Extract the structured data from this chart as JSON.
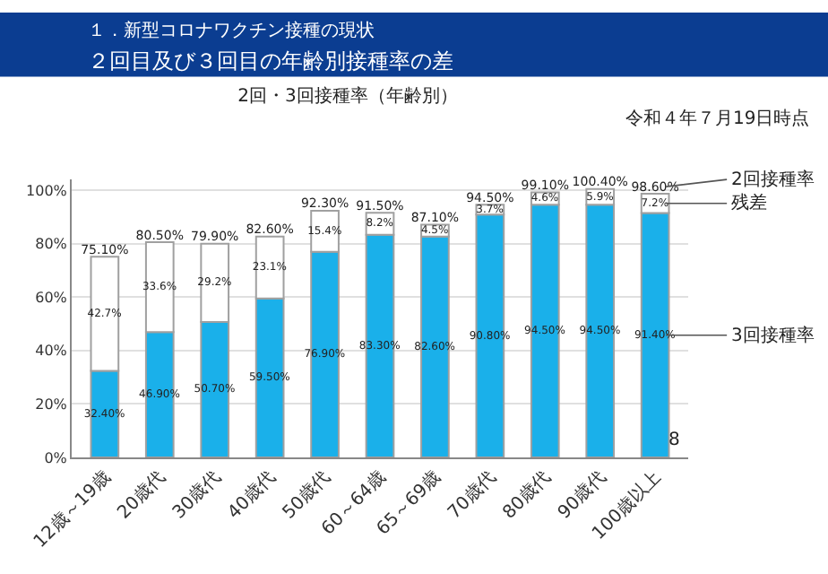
{
  "chart_data": {
    "type": "bar",
    "stacked": true,
    "title": "2回・3回接種率（年齢別）",
    "subtitle": "令和４年７月19日時点",
    "categories": [
      "12歳～19歳",
      "20歳代",
      "30歳代",
      "40歳代",
      "50歳代",
      "60～64歳",
      "65～69歳",
      "70歳代",
      "80歳代",
      "90歳代",
      "100歳以上"
    ],
    "series": [
      {
        "name": "3回接種率",
        "color": "#1ab0ea",
        "values": [
          32.4,
          46.9,
          50.7,
          59.5,
          76.9,
          83.3,
          82.6,
          90.8,
          94.5,
          94.5,
          91.4
        ],
        "value_labels": [
          "32.40%",
          "46.90%",
          "50.70%",
          "59.50%",
          "76.90%",
          "83.30%",
          "82.60%",
          "90.80%",
          "94.50%",
          "94.50%",
          "91.40%"
        ]
      },
      {
        "name": "残差",
        "color": "#ffffff",
        "values": [
          42.7,
          33.6,
          29.2,
          23.1,
          15.4,
          8.2,
          4.5,
          3.7,
          4.6,
          5.9,
          7.2
        ],
        "value_labels": [
          "42.7%",
          "33.6%",
          "29.2%",
          "23.1%",
          "15.4%",
          "8.2%",
          "4.5%",
          "3.7%",
          "4.6%",
          "5.9%",
          "7.2%"
        ]
      }
    ],
    "totals": [
      "75.10%",
      "80.50%",
      "79.90%",
      "82.60%",
      "92.30%",
      "91.50%",
      "87.10%",
      "94.50%",
      "99.10%",
      "100.40%",
      "98.60%"
    ],
    "ylim": [
      0,
      104
    ],
    "yticks": [
      {
        "value": 0,
        "label": "0%"
      },
      {
        "value": 20,
        "label": "20%"
      },
      {
        "value": 40,
        "label": "40%"
      },
      {
        "value": 60,
        "label": "60%"
      },
      {
        "value": 80,
        "label": "80%"
      },
      {
        "value": 100,
        "label": "100%"
      }
    ],
    "grid": "y",
    "annotations": [
      "１．新型コロナワクチン接種の現状",
      "２回目及び３回目の年齢別接種率の差",
      "8",
      {
        "text": "2回接種率",
        "x": "100歳以上",
        "y": 98.6
      }
    ]
  }
}
